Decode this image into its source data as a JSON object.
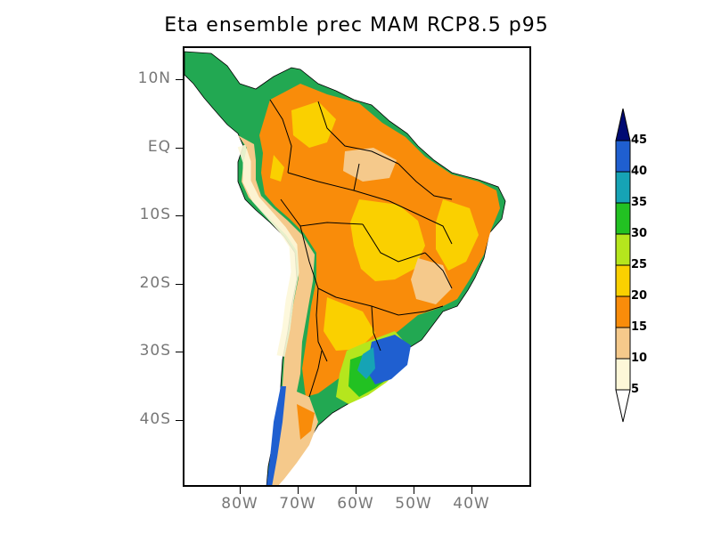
{
  "title": "Eta ensemble prec MAM RCP8.5 p95",
  "axes": {
    "lat_labels": [
      "10N",
      "EQ",
      "10S",
      "20S",
      "30S",
      "40S"
    ],
    "lon_labels": [
      "80W",
      "70W",
      "60W",
      "50W",
      "40W"
    ]
  },
  "colorbar": {
    "levels": [
      "5",
      "10",
      "15",
      "20",
      "25",
      "30",
      "35",
      "40",
      "45"
    ],
    "colors": [
      "#fdf7d8",
      "#f5c98b",
      "#f98c0a",
      "#fad000",
      "#b5e61d",
      "#22c122",
      "#16a3b5",
      "#1f5fd0",
      "#000a73"
    ],
    "under_color": "#ffffff",
    "over_color": "#000a73"
  },
  "chart_data": {
    "type": "heatmap",
    "title": "Eta ensemble prec MAM RCP8.5 p95",
    "xlabel": "",
    "ylabel": "",
    "lon_ticks": [
      -80,
      -70,
      -60,
      -50,
      -40
    ],
    "lat_ticks": [
      10,
      0,
      -10,
      -20,
      -30,
      -40
    ],
    "xlim": [
      -90,
      -34
    ],
    "ylim": [
      -50,
      15
    ],
    "levels": [
      5,
      10,
      15,
      20,
      25,
      30,
      35,
      40,
      45
    ]
  }
}
